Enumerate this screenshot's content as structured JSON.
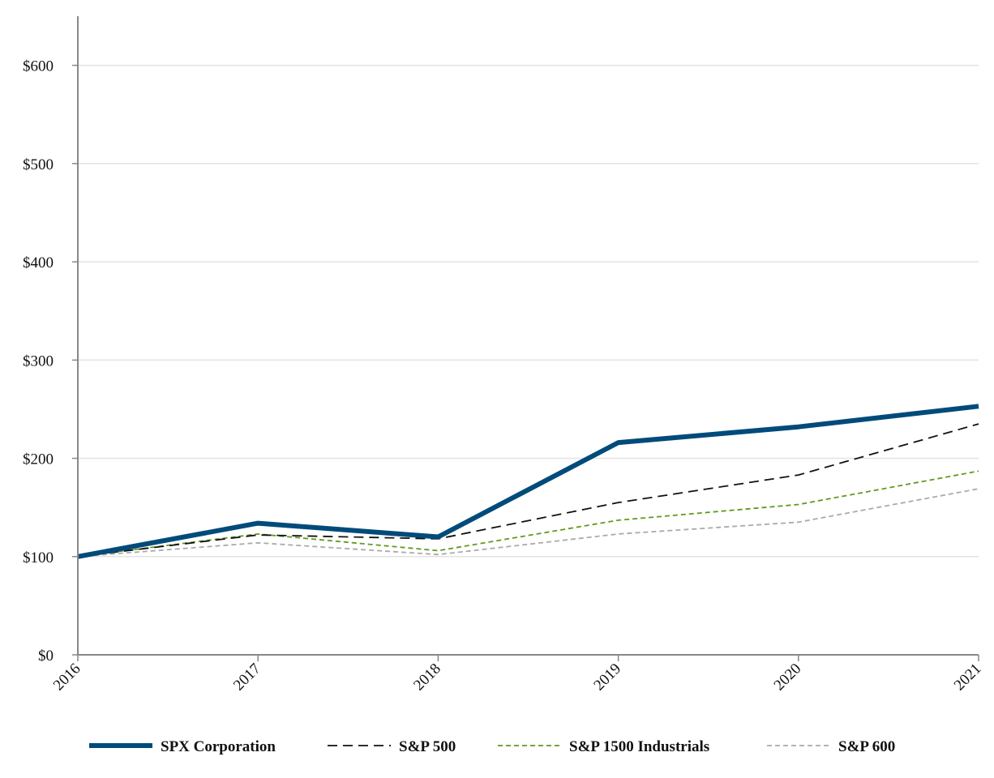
{
  "chart_data": {
    "type": "line",
    "title": "",
    "xlabel": "",
    "ylabel": "",
    "x": [
      "2016",
      "2017",
      "2018",
      "2019",
      "2020",
      "2021"
    ],
    "ylim": [
      0,
      650
    ],
    "yticks": [
      0,
      100,
      200,
      300,
      400,
      500,
      600
    ],
    "ytick_labels": [
      "$0",
      "$100",
      "$200",
      "$300",
      "$400",
      "$500",
      "$600"
    ],
    "grid": "horizontal",
    "legend_position": "bottom",
    "series": [
      {
        "name": "SPX Corporation",
        "values": [
          100,
          134,
          120,
          216,
          232,
          253
        ],
        "color": "#004b7a",
        "style": "solid"
      },
      {
        "name": "S&P 500",
        "values": [
          100,
          122,
          118,
          155,
          183,
          235
        ],
        "color": "#111111",
        "style": "dashed"
      },
      {
        "name": "S&P 1500 Industrials",
        "values": [
          100,
          123,
          106,
          137,
          153,
          187
        ],
        "color": "#5f9a1c",
        "style": "dashed"
      },
      {
        "name": "S&P 600",
        "values": [
          100,
          114,
          102,
          123,
          135,
          169
        ],
        "color": "#aaaaaa",
        "style": "dashed"
      }
    ]
  }
}
